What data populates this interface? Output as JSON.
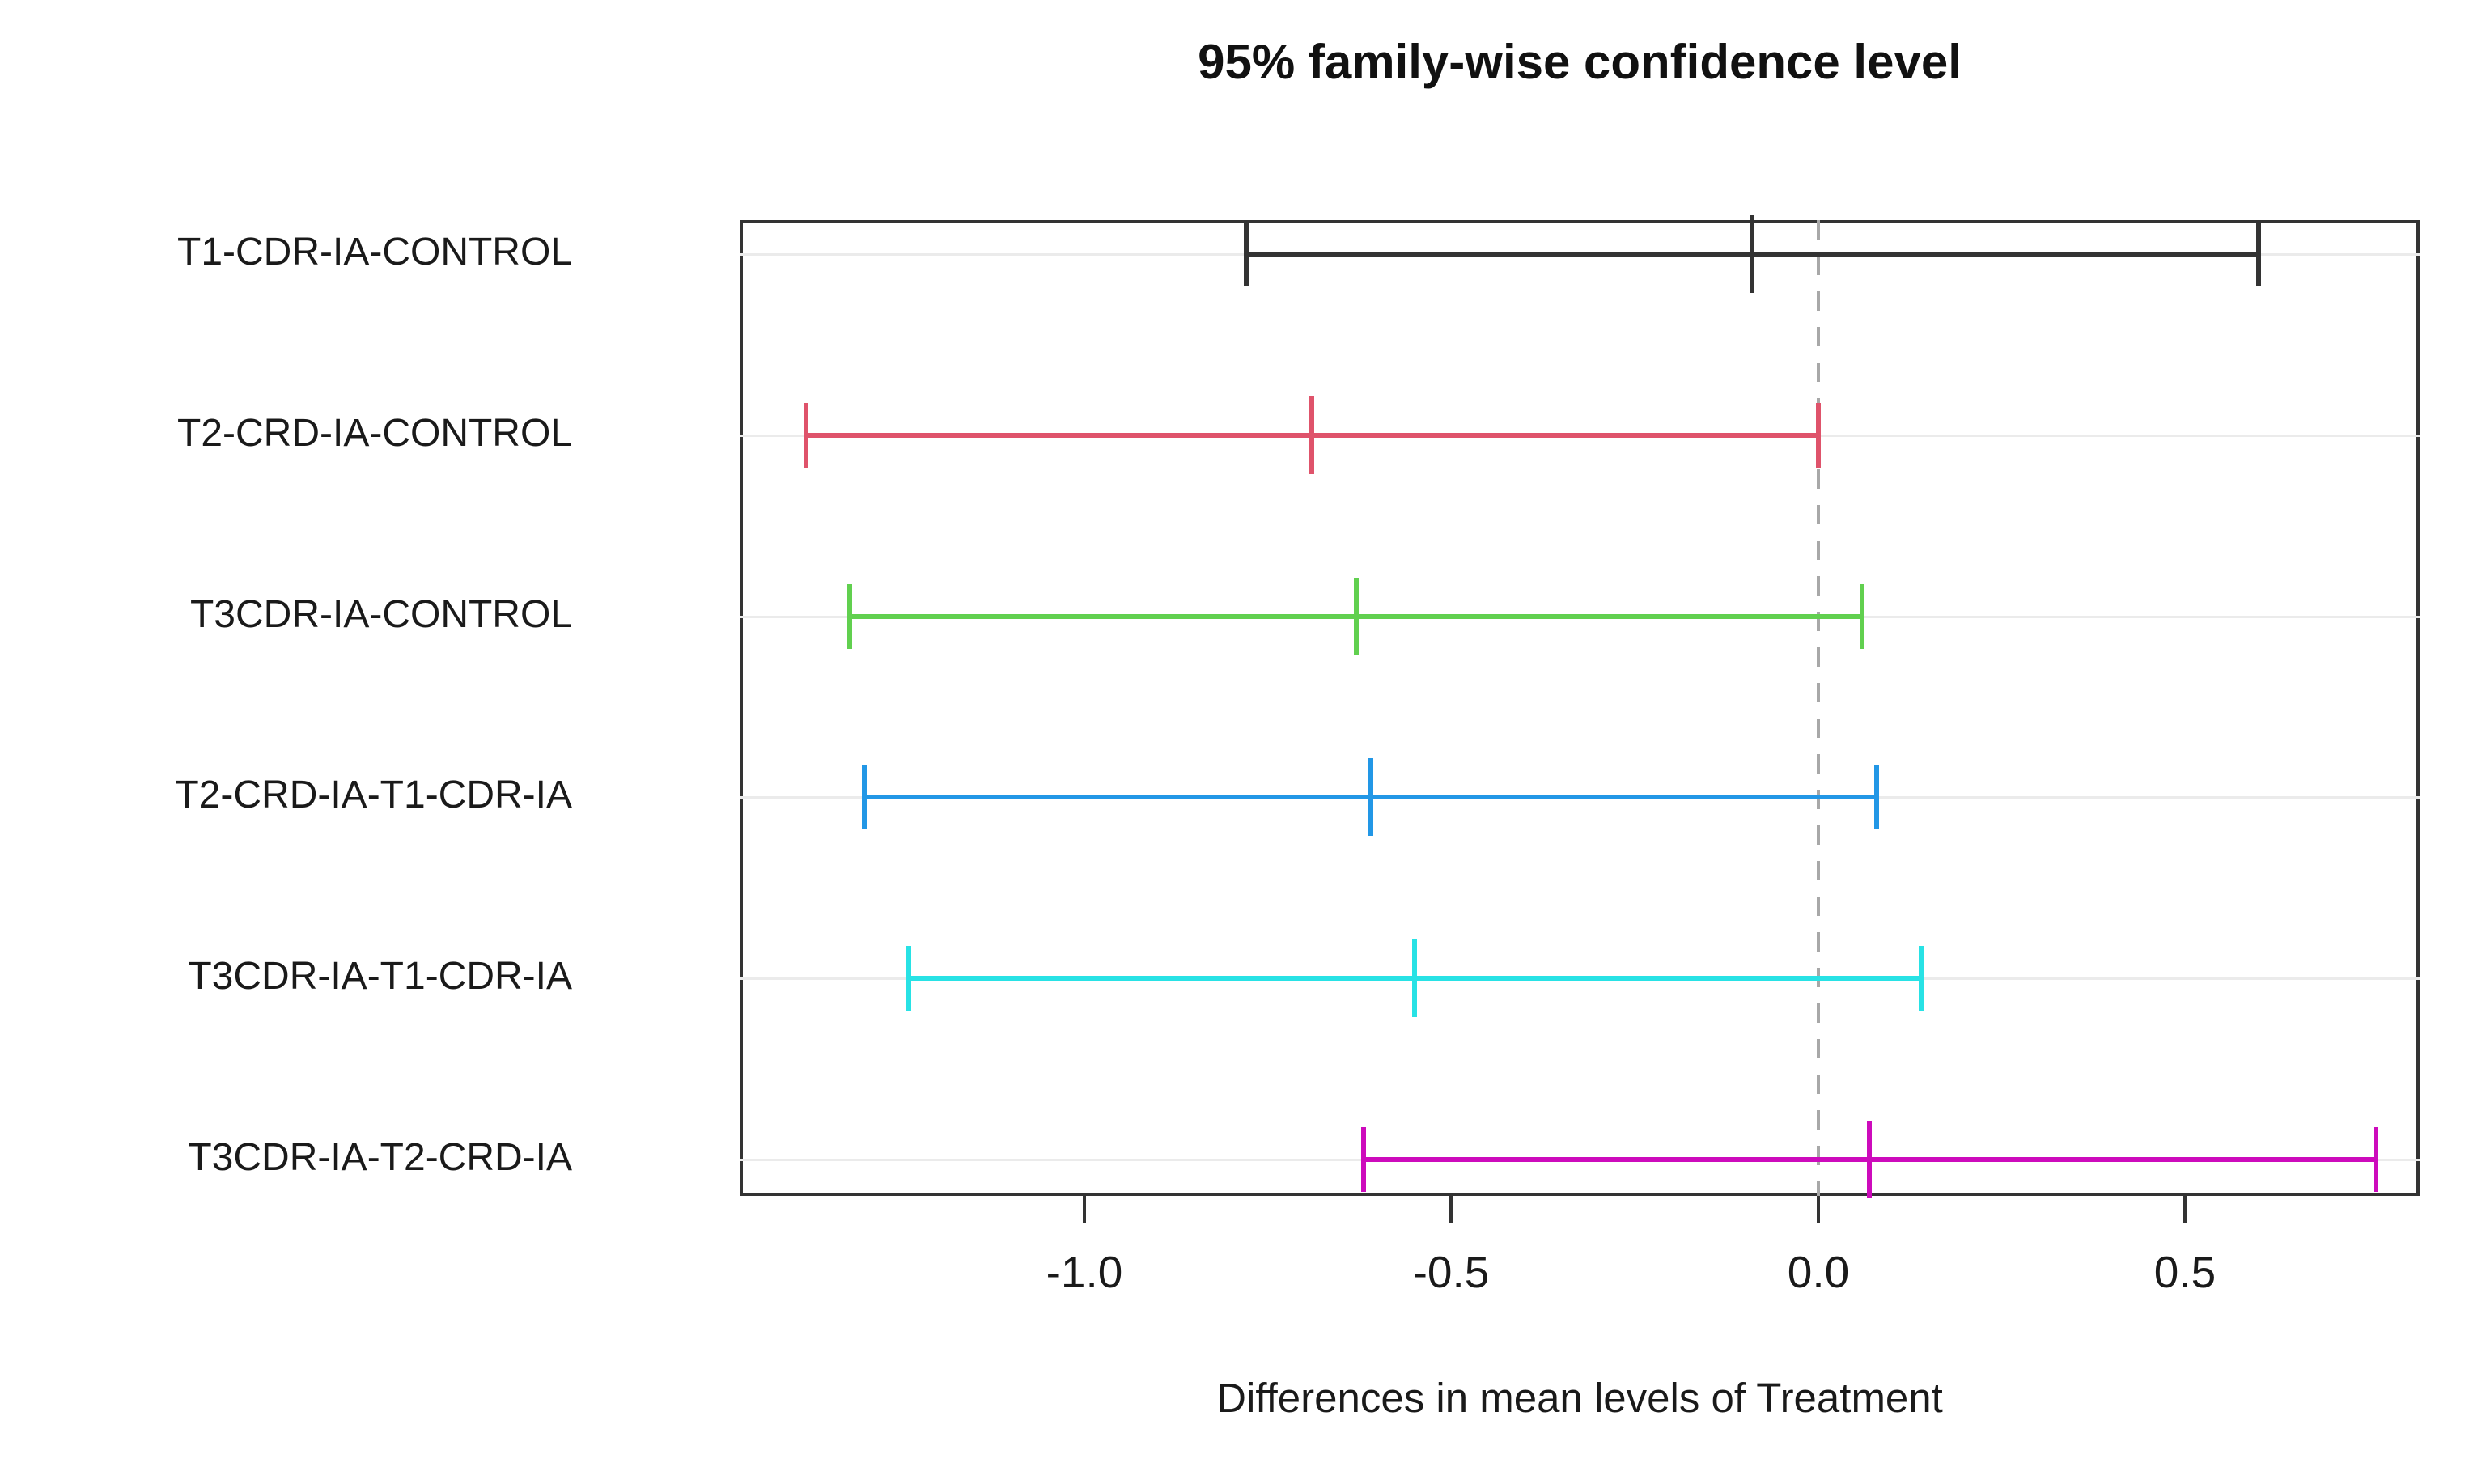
{
  "figure": {
    "title": "95% family-wise confidence level",
    "xlabel": "Differences in mean levels of Treatment"
  },
  "chart_data": {
    "type": "errorbar",
    "subtype": "tukey-hsd-confidence-intervals",
    "orientation": "horizontal",
    "title": "95% family-wise confidence level",
    "xlabel": "Differences in mean levels of Treatment",
    "confidence_level": "95%",
    "xlim": [
      -1.47,
      0.82
    ],
    "x_ticks": [
      -1.0,
      -0.5,
      0.0,
      0.5
    ],
    "x_tick_labels": [
      "-1.0",
      "-0.5",
      "0.0",
      "0.5"
    ],
    "zero_line": {
      "x": 0.0,
      "style": "dashed",
      "color": "#a8a8a8"
    },
    "grid": "light-horizontal-per-row",
    "legend": "none",
    "rows": [
      {
        "label": "T1-CDR-IA-CONTROL",
        "diff": -0.09,
        "lwr": -0.78,
        "upr": 0.6,
        "color": "#333333"
      },
      {
        "label": "T2-CRD-IA-CONTROL",
        "diff": -0.69,
        "lwr": -1.38,
        "upr": 0.0,
        "color": "#DF536B"
      },
      {
        "label": "T3CDR-IA-CONTROL",
        "diff": -0.63,
        "lwr": -1.32,
        "upr": 0.06,
        "color": "#61D04F"
      },
      {
        "label": "T2-CRD-IA-T1-CDR-IA",
        "diff": -0.61,
        "lwr": -1.3,
        "upr": 0.08,
        "color": "#2297E6"
      },
      {
        "label": "T3CDR-IA-T1-CDR-IA",
        "diff": -0.55,
        "lwr": -1.24,
        "upr": 0.14,
        "color": "#28E2E5"
      },
      {
        "label": "T3CDR-IA-T2-CRD-IA",
        "diff": 0.07,
        "lwr": -0.62,
        "upr": 0.76,
        "color": "#CD0BBC"
      }
    ]
  }
}
